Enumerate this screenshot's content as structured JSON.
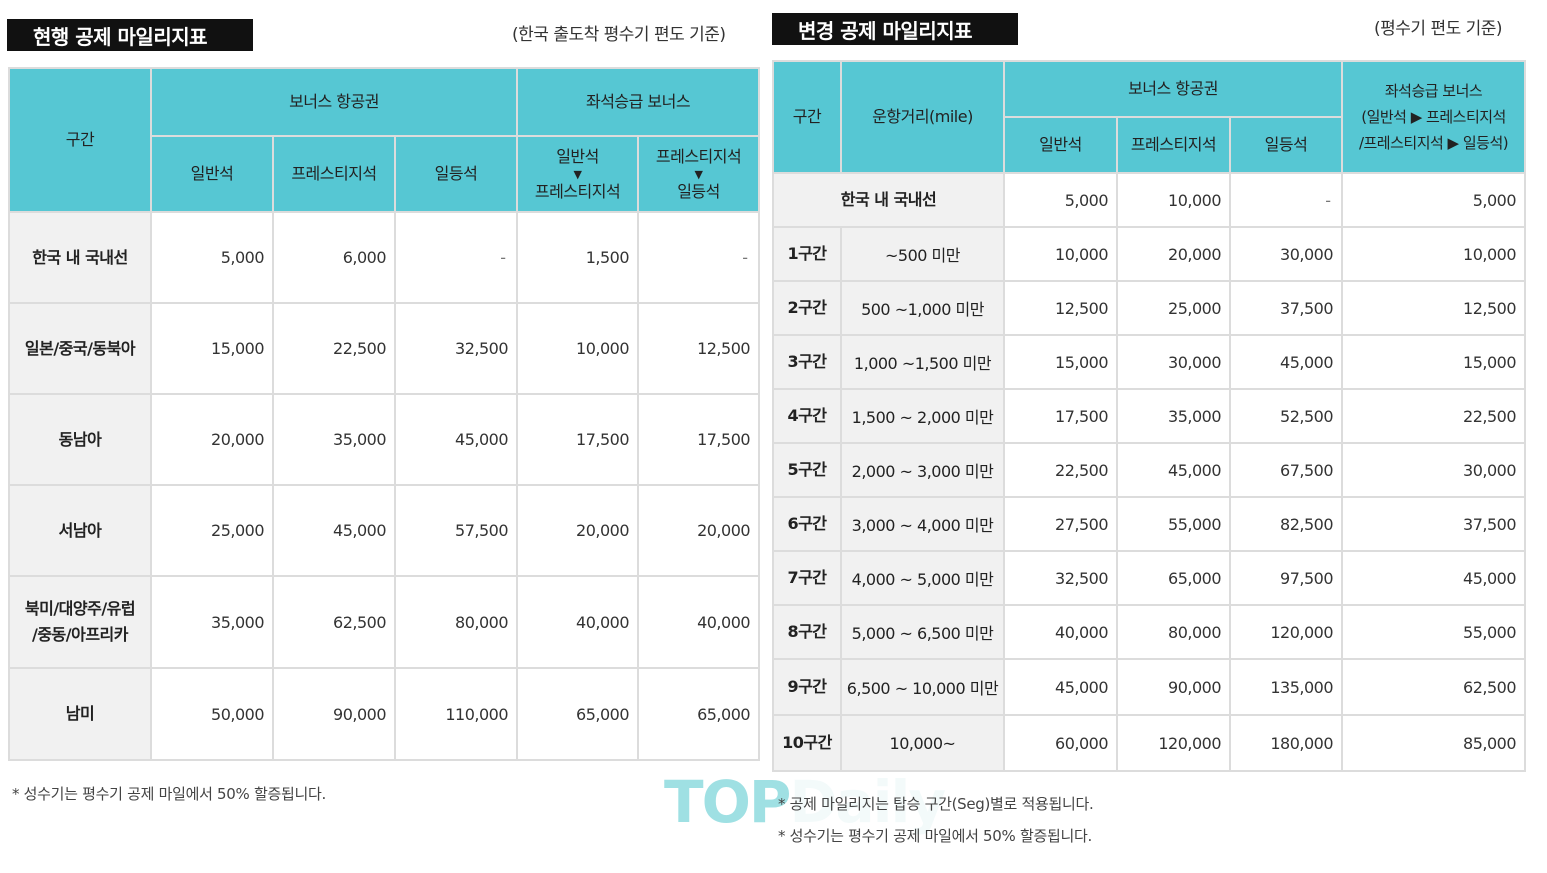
{
  "current": {
    "title": "현행 공제 마일리지표",
    "basis": "(한국 출도착 평수기 편도 기준)",
    "header": {
      "zone": "구간",
      "bonus_ticket": "보너스 항공권",
      "upgrade_bonus": "좌석승급 보너스",
      "economy": "일반석",
      "prestige": "프레스티지석",
      "first": "일등석",
      "upg1_from": "일반석",
      "upg1_to": "프레스티지석",
      "upg2_from": "프레스티지석",
      "upg2_to": "일등석",
      "arrow": "▼"
    },
    "rows": [
      {
        "zone": "한국 내 국내선",
        "economy": "5,000",
        "prestige": "6,000",
        "first": "-",
        "upg1": "1,500",
        "upg2": "-"
      },
      {
        "zone": "일본/중국/동북아",
        "economy": "15,000",
        "prestige": "22,500",
        "first": "32,500",
        "upg1": "10,000",
        "upg2": "12,500"
      },
      {
        "zone": "동남아",
        "economy": "20,000",
        "prestige": "35,000",
        "first": "45,000",
        "upg1": "17,500",
        "upg2": "17,500"
      },
      {
        "zone": "서남아",
        "economy": "25,000",
        "prestige": "45,000",
        "first": "57,500",
        "upg1": "20,000",
        "upg2": "20,000"
      },
      {
        "zone_line1": "북미/대양주/유럽",
        "zone_line2": "/중동/아프리카",
        "economy": "35,000",
        "prestige": "62,500",
        "first": "80,000",
        "upg1": "40,000",
        "upg2": "40,000"
      },
      {
        "zone": "남미",
        "economy": "50,000",
        "prestige": "90,000",
        "first": "110,000",
        "upg1": "65,000",
        "upg2": "65,000"
      }
    ],
    "footnote": "* 성수기는 평수기 공제 마일에서 50% 할증됩니다."
  },
  "changed": {
    "title": "변경 공제 마일리지표",
    "basis": "(평수기 편도 기준)",
    "header": {
      "zone": "구간",
      "distance": "운항거리(mile)",
      "bonus_ticket": "보너스 항공권",
      "upgrade_line1": "좌석승급 보너스",
      "upgrade_line2": "(일반석 ▶ 프레스티지석",
      "upgrade_line3": "/프레스티지석 ▶ 일등석)",
      "economy": "일반석",
      "prestige": "프레스티지석",
      "first": "일등석"
    },
    "domestic": {
      "zone": "한국 내 국내선",
      "economy": "5,000",
      "prestige": "10,000",
      "first": "-",
      "upgrade": "5,000"
    },
    "rows": [
      {
        "zone": "1구간",
        "distance": "~500 미만",
        "economy": "10,000",
        "prestige": "20,000",
        "first": "30,000",
        "upgrade": "10,000"
      },
      {
        "zone": "2구간",
        "distance": "500 ~1,000 미만",
        "economy": "12,500",
        "prestige": "25,000",
        "first": "37,500",
        "upgrade": "12,500"
      },
      {
        "zone": "3구간",
        "distance": "1,000 ~1,500 미만",
        "economy": "15,000",
        "prestige": "30,000",
        "first": "45,000",
        "upgrade": "15,000"
      },
      {
        "zone": "4구간",
        "distance": "1,500 ~ 2,000 미만",
        "economy": "17,500",
        "prestige": "35,000",
        "first": "52,500",
        "upgrade": "22,500"
      },
      {
        "zone": "5구간",
        "distance": "2,000 ~ 3,000 미만",
        "economy": "22,500",
        "prestige": "45,000",
        "first": "67,500",
        "upgrade": "30,000"
      },
      {
        "zone": "6구간",
        "distance": "3,000 ~ 4,000 미만",
        "economy": "27,500",
        "prestige": "55,000",
        "first": "82,500",
        "upgrade": "37,500"
      },
      {
        "zone": "7구간",
        "distance": "4,000 ~ 5,000 미만",
        "economy": "32,500",
        "prestige": "65,000",
        "first": "97,500",
        "upgrade": "45,000"
      },
      {
        "zone": "8구간",
        "distance": "5,000 ~ 6,500 미만",
        "economy": "40,000",
        "prestige": "80,000",
        "first": "120,000",
        "upgrade": "55,000"
      },
      {
        "zone": "9구간",
        "distance": "6,500 ~ 10,000 미만",
        "economy": "45,000",
        "prestige": "90,000",
        "first": "135,000",
        "upgrade": "62,500"
      },
      {
        "zone": "10구간",
        "distance": "10,000~",
        "economy": "60,000",
        "prestige": "120,000",
        "first": "180,000",
        "upgrade": "85,000"
      }
    ],
    "footnote1": "* 공제 마일리지는 탑승 구간(Seg)별로 적용됩니다.",
    "footnote2": "* 성수기는 평수기 공제 마일에서 50% 할증됩니다."
  },
  "watermark": {
    "main": "TOP",
    "rest": "Daily"
  }
}
